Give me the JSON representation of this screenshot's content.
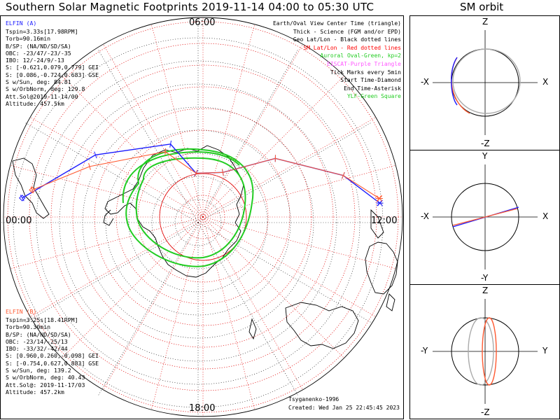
{
  "title": "Southern Solar Magnetic Footprints 2019-11-14 04:00 to 05:30 UTC",
  "sm_orbit_title": "SM orbit",
  "clock_labels": {
    "top": "06:00",
    "bottom": "18:00",
    "left": "00:00",
    "right": "12:00"
  },
  "probe_a": {
    "name": "ELFIN (A)",
    "color": "#1a1aff",
    "lines": [
      "Tspin=3.33s[17.98RPM]",
      "Torb=90.16min",
      "B/SP: (NA/ND/SD/SA)",
      "OBC: -23/47/-23/-35",
      "IBO: 12/-24/9/-13",
      "S: [-0.621,0.079,0.779] GEI",
      "S: [0.086,-0.724,0.683] GSE",
      "S w/Sun, deg: 84.81",
      "S w/OrbNorm, deg: 129.8",
      "Att.Sol@2019-11-14/00",
      "Altitude: 457.5km"
    ]
  },
  "probe_b": {
    "name": "ELFIN (B)",
    "color": "#ff5a32",
    "lines": [
      "Tspin=3.25s[18.41RPM]",
      "Torb=90.30min",
      "B/SP: (NA/ND/SD/SA)",
      "OBC: -23/14/-25/13",
      "IBO: -33/32/-42/44",
      "S: [0.960,0.260,-0.098] GEI",
      "S: [-0.754,0.627,0.883] GSE",
      "S w/Sun, deg: 139.2",
      "S w/OrbNorm, deg: 40.43",
      "Att.Sol@: 2019-11-17/03",
      "Altitude: 457.2km"
    ]
  },
  "legend": [
    {
      "text": "Earth/Oval View Center Time (triangle)",
      "color": "#000000"
    },
    {
      "text": "Thick - Science (FGM and/or EPD)",
      "color": "#000000"
    },
    {
      "text": "Geo Lat/Lon - Black dotted lines",
      "color": "#000000"
    },
    {
      "text": "SM Lat/Lon - Red dotted lines",
      "color": "#ff0000"
    },
    {
      "text": "Auroral Oval-Green, kp=2",
      "color": "#22cc22"
    },
    {
      "text": "EISCAT-Purple Triangle",
      "color": "#ff55ff"
    },
    {
      "text": "Tick Marks every 5min",
      "color": "#000000"
    },
    {
      "text": "Start Time-Diamond",
      "color": "#000000"
    },
    {
      "text": "End Time-Asterisk",
      "color": "#000000"
    },
    {
      "text": "YLF-Green Square",
      "color": "#22cc22"
    }
  ],
  "footer": {
    "credit": "Tsyganenko-1996",
    "created": "Created: Wed Jan 25 22:45:45 2023"
  },
  "sm_panels": [
    {
      "top": "Z",
      "bottom": "-Z",
      "left": "-X",
      "right": "X"
    },
    {
      "top": "Y",
      "bottom": "-Y",
      "left": "-X",
      "right": "X"
    },
    {
      "top": "Z",
      "bottom": "-Z",
      "left": "-Y",
      "right": "Y"
    }
  ],
  "colors": {
    "probe_a": "#1a1aff",
    "probe_b": "#ff5a32",
    "sm_grid": "#e00000",
    "oval": "#22cc22",
    "coast": "#000000"
  },
  "chart_data": {
    "type": "line",
    "projection": "south polar, SM magnetic latitude / MLT",
    "grid": true,
    "mlt_hours_shown": [
      "00:00",
      "06:00",
      "12:00",
      "18:00"
    ],
    "series": [
      {
        "name": "ELFIN (A)",
        "mlt": [
          0.4,
          2.0,
          4.4,
          5.4,
          7.6,
          9.4,
          10.9,
          11.7
        ],
        "mlat": [
          -49,
          -62,
          -72,
          -80,
          -79,
          -69,
          -57,
          -50
        ]
      },
      {
        "name": "ELFIN (B)",
        "mlt": [
          0.6,
          1.6,
          4.0,
          5.4,
          7.6,
          9.4,
          10.9,
          11.6
        ],
        "mlat": [
          -51,
          -62,
          -73,
          -80,
          -79,
          -69,
          -57,
          -50
        ]
      }
    ]
  }
}
